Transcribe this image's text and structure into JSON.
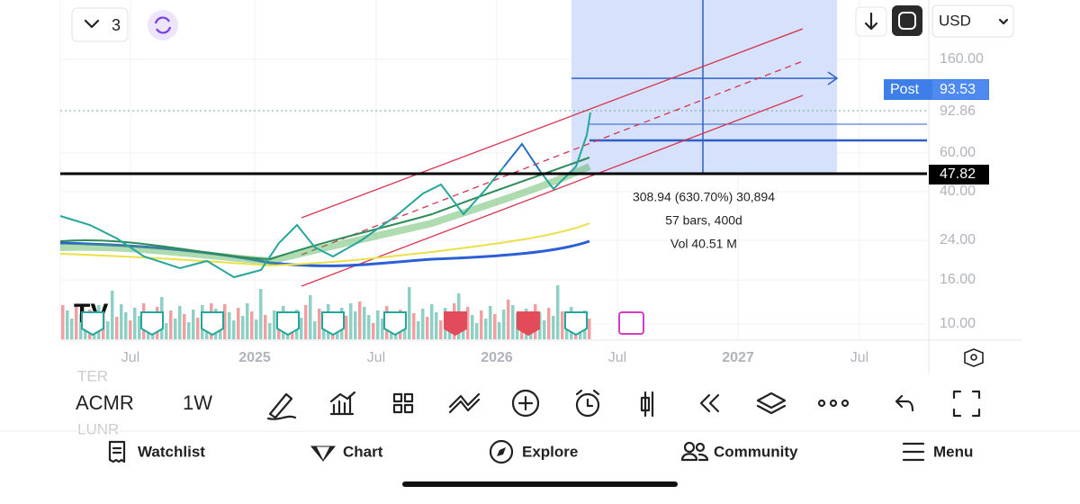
{
  "header": {
    "interval_count": "3",
    "currency": "USD"
  },
  "price_scale": {
    "labels": [
      "160.00",
      "92.86",
      "60.00",
      "40.00",
      "24.00",
      "16.00",
      "10.00"
    ],
    "post_label": "Post",
    "post_price": "93.53",
    "line_price": "47.82"
  },
  "measure": {
    "change": "308.94 (630.70%) 30,894",
    "bars": "57 bars, 400d",
    "volume": "Vol 40.51 M"
  },
  "time_scale": {
    "labels": [
      "Jul",
      "2025",
      "Jul",
      "2026",
      "Jul",
      "2027",
      "Jul"
    ]
  },
  "toolbar": {
    "symbol": "ACMR",
    "interval": "1W",
    "watch_above": "TER",
    "watch_below": "LUNR"
  },
  "nav": {
    "items": [
      "Watchlist",
      "Chart",
      "Explore",
      "Community",
      "Menu"
    ]
  }
}
